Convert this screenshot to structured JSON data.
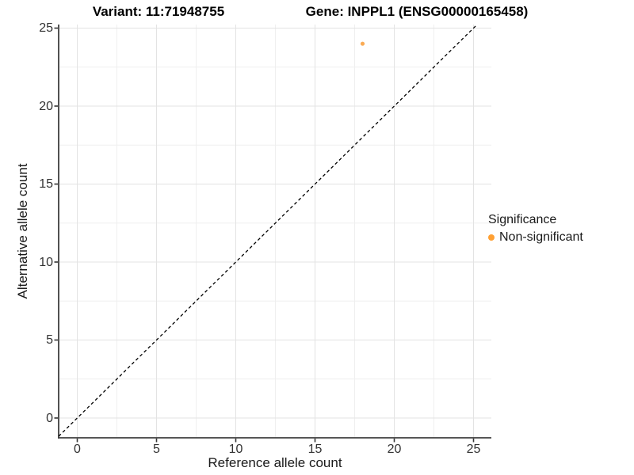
{
  "chart_data": {
    "type": "scatter",
    "title_left": "Variant: 11:71948755",
    "title_right": "Gene: INPPL1 (ENSG00000165458)",
    "xlabel": "Reference allele count",
    "ylabel": "Alternative allele count",
    "xlim": [
      -1.2,
      26.1
    ],
    "ylim": [
      -1.3,
      25.2
    ],
    "xticks": [
      0,
      5,
      10,
      15,
      20,
      25
    ],
    "yticks": [
      0,
      5,
      10,
      15,
      20,
      25
    ],
    "grid": "major+minor",
    "minor_grid_step": 2.5,
    "points": [
      {
        "x": 18,
        "y": 24,
        "series": "Non-significant"
      }
    ],
    "reference_line": {
      "type": "abline",
      "slope": 1,
      "intercept": 0,
      "style": "dashed",
      "color": "#000000"
    },
    "series": [
      {
        "name": "Non-significant",
        "color": "#FFA033"
      }
    ],
    "legend": {
      "title": "Significance",
      "position": "right"
    }
  },
  "colors": {
    "point_fill": "#F9A242",
    "legend_key": "#FFA033",
    "grid_major": "#e3e3e3",
    "grid_minor": "#efefef",
    "axis_line": "#3f3f3f",
    "tick_mark": "#333333"
  }
}
